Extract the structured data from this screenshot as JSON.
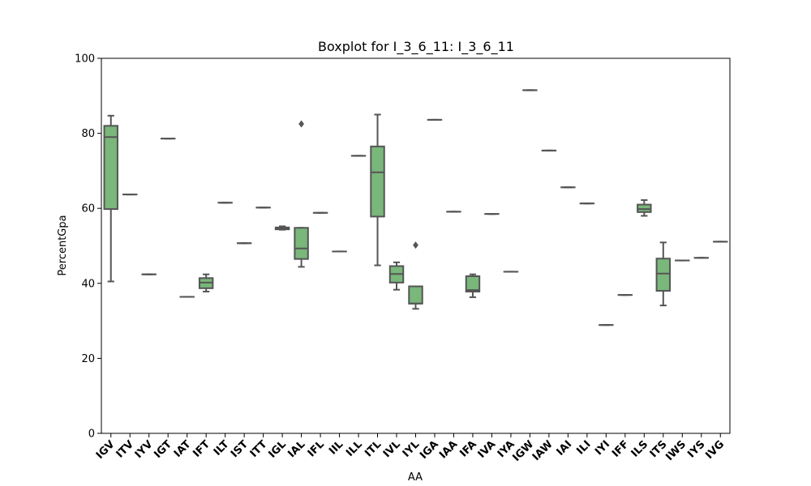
{
  "chart_data": {
    "type": "box",
    "title": "Boxplot for I_3_6_11: I_3_6_11",
    "xlabel": "AA",
    "ylabel": "PercentGpa",
    "ylim": [
      0,
      100
    ],
    "yticks": [
      0,
      20,
      40,
      60,
      80,
      100
    ],
    "grid": false,
    "colors": {
      "box_fill": "#79b77a",
      "line": "#555555"
    },
    "categories": [
      "IGV",
      "ITV",
      "IYV",
      "IGT",
      "IAT",
      "IFT",
      "ILT",
      "IST",
      "ITT",
      "IGL",
      "IAL",
      "IFL",
      "IIL",
      "ILL",
      "ITL",
      "IVL",
      "IYL",
      "IGA",
      "IAA",
      "IFA",
      "IVA",
      "IYA",
      "IGW",
      "IAW",
      "IAI",
      "ILI",
      "IYI",
      "IFF",
      "ILS",
      "ITS",
      "IWS",
      "IYS",
      "IVG"
    ],
    "boxes": [
      {
        "category": "IGV",
        "whislo": 40.5,
        "q1": 59.8,
        "med": 79,
        "q3": 82,
        "whishi": 84.7,
        "fliers": []
      },
      {
        "category": "ITV",
        "whislo": 63.7,
        "q1": 63.7,
        "med": 63.7,
        "q3": 63.7,
        "whishi": 63.7,
        "fliers": []
      },
      {
        "category": "IYV",
        "whislo": 42.4,
        "q1": 42.4,
        "med": 42.4,
        "q3": 42.4,
        "whishi": 42.4,
        "fliers": []
      },
      {
        "category": "IGT",
        "whislo": 78.6,
        "q1": 78.6,
        "med": 78.6,
        "q3": 78.6,
        "whishi": 78.6,
        "fliers": []
      },
      {
        "category": "IAT",
        "whislo": 36.4,
        "q1": 36.4,
        "med": 36.4,
        "q3": 36.4,
        "whishi": 36.4,
        "fliers": []
      },
      {
        "category": "IFT",
        "whislo": 37.8,
        "q1": 38.7,
        "med": 40.2,
        "q3": 41.4,
        "whishi": 42.4,
        "fliers": []
      },
      {
        "category": "ILT",
        "whislo": 61.5,
        "q1": 61.5,
        "med": 61.5,
        "q3": 61.5,
        "whishi": 61.5,
        "fliers": []
      },
      {
        "category": "IST",
        "whislo": 50.7,
        "q1": 50.7,
        "med": 50.7,
        "q3": 50.7,
        "whishi": 50.7,
        "fliers": []
      },
      {
        "category": "ITT",
        "whislo": 60.2,
        "q1": 60.2,
        "med": 60.2,
        "q3": 60.2,
        "whishi": 60.2,
        "fliers": []
      },
      {
        "category": "IGL",
        "whislo": 54.3,
        "q1": 54.4,
        "med": 54.6,
        "q3": 54.9,
        "whishi": 55.2,
        "fliers": []
      },
      {
        "category": "IAL",
        "whislo": 44.4,
        "q1": 46.5,
        "med": 49.3,
        "q3": 54.8,
        "whishi": 54.8,
        "fliers": [
          82.5
        ]
      },
      {
        "category": "IFL",
        "whislo": 58.8,
        "q1": 58.8,
        "med": 58.8,
        "q3": 58.8,
        "whishi": 58.8,
        "fliers": []
      },
      {
        "category": "IIL",
        "whislo": 48.5,
        "q1": 48.5,
        "med": 48.5,
        "q3": 48.5,
        "whishi": 48.5,
        "fliers": []
      },
      {
        "category": "ILL",
        "whislo": 74,
        "q1": 74,
        "med": 74,
        "q3": 74,
        "whishi": 74,
        "fliers": []
      },
      {
        "category": "ITL",
        "whislo": 44.8,
        "q1": 57.8,
        "med": 69.6,
        "q3": 76.5,
        "whishi": 85,
        "fliers": []
      },
      {
        "category": "IVL",
        "whislo": 38.3,
        "q1": 40.2,
        "med": 42.5,
        "q3": 44.6,
        "whishi": 45.6,
        "fliers": []
      },
      {
        "category": "IYL",
        "whislo": 33.2,
        "q1": 34.6,
        "med": 34.6,
        "q3": 39.2,
        "whishi": 39.2,
        "fliers": [
          50.2
        ]
      },
      {
        "category": "IGA",
        "whislo": 83.6,
        "q1": 83.6,
        "med": 83.6,
        "q3": 83.6,
        "whishi": 83.6,
        "fliers": []
      },
      {
        "category": "IAA",
        "whislo": 59.1,
        "q1": 59.1,
        "med": 59.1,
        "q3": 59.1,
        "whishi": 59.1,
        "fliers": []
      },
      {
        "category": "IFA",
        "whislo": 36.3,
        "q1": 37.8,
        "med": 38.2,
        "q3": 41.9,
        "whishi": 42.4,
        "fliers": []
      },
      {
        "category": "IVA",
        "whislo": 58.5,
        "q1": 58.5,
        "med": 58.5,
        "q3": 58.5,
        "whishi": 58.5,
        "fliers": []
      },
      {
        "category": "IYA",
        "whislo": 43.1,
        "q1": 43.1,
        "med": 43.1,
        "q3": 43.1,
        "whishi": 43.1,
        "fliers": []
      },
      {
        "category": "IGW",
        "whislo": 91.5,
        "q1": 91.5,
        "med": 91.5,
        "q3": 91.5,
        "whishi": 91.5,
        "fliers": []
      },
      {
        "category": "IAW",
        "whislo": 75.4,
        "q1": 75.4,
        "med": 75.4,
        "q3": 75.4,
        "whishi": 75.4,
        "fliers": []
      },
      {
        "category": "IAI",
        "whislo": 65.6,
        "q1": 65.6,
        "med": 65.6,
        "q3": 65.6,
        "whishi": 65.6,
        "fliers": []
      },
      {
        "category": "ILI",
        "whislo": 61.3,
        "q1": 61.3,
        "med": 61.3,
        "q3": 61.3,
        "whishi": 61.3,
        "fliers": []
      },
      {
        "category": "IYI",
        "whislo": 28.9,
        "q1": 28.9,
        "med": 28.9,
        "q3": 28.9,
        "whishi": 28.9,
        "fliers": []
      },
      {
        "category": "IFF",
        "whislo": 36.9,
        "q1": 36.9,
        "med": 36.9,
        "q3": 36.9,
        "whishi": 36.9,
        "fliers": []
      },
      {
        "category": "ILS",
        "whislo": 58,
        "q1": 59,
        "med": 59.8,
        "q3": 61,
        "whishi": 62.2,
        "fliers": []
      },
      {
        "category": "ITS",
        "whislo": 34.1,
        "q1": 38,
        "med": 42.6,
        "q3": 46.6,
        "whishi": 50.9,
        "fliers": []
      },
      {
        "category": "IWS",
        "whislo": 46.1,
        "q1": 46.1,
        "med": 46.1,
        "q3": 46.1,
        "whishi": 46.1,
        "fliers": []
      },
      {
        "category": "IYS",
        "whislo": 46.8,
        "q1": 46.8,
        "med": 46.8,
        "q3": 46.8,
        "whishi": 46.8,
        "fliers": []
      },
      {
        "category": "IVG",
        "whislo": 51.1,
        "q1": 51.1,
        "med": 51.1,
        "q3": 51.1,
        "whishi": 51.1,
        "fliers": []
      }
    ]
  }
}
